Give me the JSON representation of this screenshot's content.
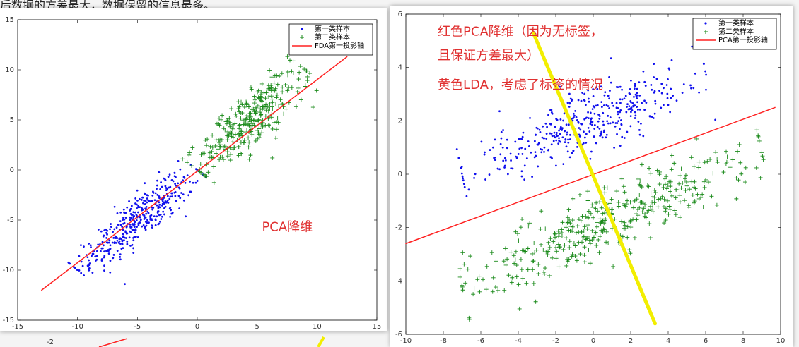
{
  "caption_top": "后数据的方差最大，数据保留的信息最多。",
  "colors": {
    "class1": "#1010ee",
    "class2": "#1a8a1a",
    "axis_line": "#ff2020",
    "lda_line": "#f2ee00",
    "note": "#e03030"
  },
  "chart_data": [
    {
      "type": "scatter",
      "title": "",
      "xlabel": "",
      "ylabel": "",
      "xlim": [
        -15,
        15
      ],
      "ylim": [
        -15,
        15
      ],
      "xticks": [
        -15,
        -10,
        -5,
        0,
        5,
        10,
        15
      ],
      "yticks": [
        15,
        10,
        5,
        0,
        -5,
        -10,
        -15
      ],
      "grid": false,
      "legend_position": "top-right",
      "series": [
        {
          "name": "第一类样本",
          "marker": "dot",
          "cluster": {
            "from": [
              -10,
              -10
            ],
            "to": [
              0,
              0
            ],
            "count": 420,
            "spread": 0.9
          }
        },
        {
          "name": "第二类样本",
          "marker": "plus",
          "cluster": {
            "from": [
              0,
              0
            ],
            "to": [
              9,
              10
            ],
            "count": 320,
            "spread": 1.0
          }
        },
        {
          "name": "FDA第一投影轴",
          "marker": "line",
          "line": [
            [
              -13,
              -12
            ],
            [
              12.5,
              11.3
            ]
          ]
        }
      ],
      "annotations": [
        {
          "text": "PCA降维",
          "x": 5.4,
          "y": -6.1
        }
      ]
    },
    {
      "type": "scatter",
      "title": "",
      "xlabel": "",
      "ylabel": "",
      "xlim": [
        -10,
        10
      ],
      "ylim": [
        -6,
        6
      ],
      "xticks": [
        -10,
        -8,
        -6,
        -4,
        -2,
        0,
        2,
        4,
        6,
        8,
        10
      ],
      "yticks": [
        6,
        4,
        2,
        0,
        -2,
        -4,
        -6
      ],
      "grid": false,
      "legend_position": "top-right",
      "series": [
        {
          "name": "第一类样本",
          "marker": "dot",
          "cluster": {
            "from": [
              -7,
              0
            ],
            "to": [
              6,
              3.8
            ],
            "count": 420,
            "spread": 0.55
          }
        },
        {
          "name": "第二类样本",
          "marker": "plus",
          "cluster": {
            "from": [
              -7,
              -4.2
            ],
            "to": [
              9,
              0.8
            ],
            "count": 420,
            "spread": 0.6
          }
        },
        {
          "name": "PCA第一投影轴",
          "marker": "line",
          "line": [
            [
              -10,
              -2.6
            ],
            [
              9.7,
              2.5
            ]
          ]
        },
        {
          "name": "",
          "marker": "line-yellow",
          "line": [
            [
              -3.2,
              5.3
            ],
            [
              3.3,
              -5.6
            ]
          ]
        }
      ],
      "annotations": [
        {
          "text": "红色PCA降维（因为无标签，",
          "x": -8.3,
          "y": 5.2
        },
        {
          "text": "且保证方差最大）",
          "x": -8.3,
          "y": 4.3
        },
        {
          "text": "黄色LDA，考虑了标签的情况",
          "x": -8.3,
          "y": 3.2
        }
      ]
    }
  ],
  "partial_bottom": {
    "tick_label": "-2"
  }
}
